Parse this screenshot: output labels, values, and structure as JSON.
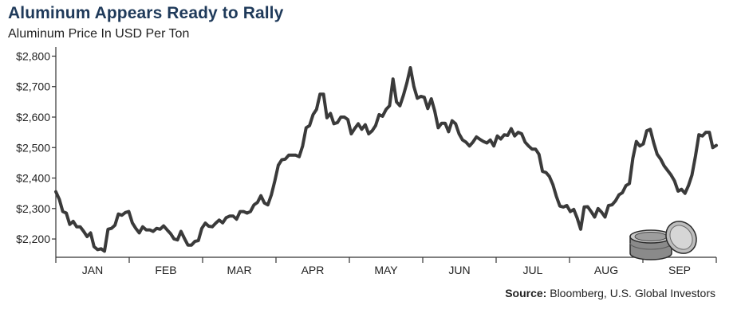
{
  "title": "Aluminum Appears Ready to Rally",
  "subtitle": "Aluminum Price In USD Per Ton",
  "source": {
    "label": "Source:",
    "text": " Bloomberg, U.S. Global Investors"
  },
  "colors": {
    "line": "#3a3a3a",
    "title": "#1f3a5a",
    "axis": "#333333"
  },
  "icon": "aluminum-tin-icon",
  "chart_data": {
    "type": "line",
    "title": "Aluminum Price In USD Per Ton",
    "xlabel": "",
    "ylabel": "",
    "ylim": [
      2140,
      2830
    ],
    "yticks": [
      2200,
      2300,
      2400,
      2500,
      2600,
      2700,
      2800
    ],
    "ytick_labels": [
      "$2,200",
      "$2,300",
      "$2,400",
      "$2,500",
      "$2,600",
      "$2,700",
      "$2,800"
    ],
    "months": [
      "JAN",
      "FEB",
      "MAR",
      "APR",
      "MAY",
      "JUN",
      "JUL",
      "AUG",
      "SEP"
    ],
    "grid": false,
    "series": [
      {
        "values": [
          2355,
          2330,
          2290,
          2285,
          2248,
          2258,
          2240,
          2240,
          2225,
          2208,
          2220,
          2175,
          2165,
          2168,
          2160,
          2232,
          2235,
          2245,
          2282,
          2278,
          2287,
          2290,
          2253,
          2235,
          2220,
          2240,
          2230,
          2230,
          2225,
          2235,
          2232,
          2243,
          2230,
          2218,
          2200,
          2197,
          2225,
          2202,
          2180,
          2180,
          2192,
          2195,
          2235,
          2252,
          2242,
          2240,
          2252,
          2262,
          2253,
          2270,
          2275,
          2275,
          2265,
          2290,
          2290,
          2285,
          2290,
          2312,
          2320,
          2342,
          2318,
          2312,
          2345,
          2390,
          2442,
          2460,
          2462,
          2475,
          2475,
          2475,
          2470,
          2505,
          2565,
          2572,
          2608,
          2625,
          2675,
          2675,
          2598,
          2612,
          2578,
          2582,
          2600,
          2600,
          2592,
          2545,
          2563,
          2578,
          2560,
          2575,
          2545,
          2555,
          2572,
          2608,
          2603,
          2625,
          2637,
          2725,
          2650,
          2637,
          2672,
          2712,
          2762,
          2700,
          2662,
          2668,
          2665,
          2628,
          2660,
          2620,
          2565,
          2580,
          2580,
          2552,
          2588,
          2578,
          2545,
          2525,
          2518,
          2505,
          2518,
          2535,
          2527,
          2520,
          2515,
          2525,
          2505,
          2538,
          2528,
          2542,
          2540,
          2562,
          2538,
          2550,
          2545,
          2518,
          2505,
          2495,
          2495,
          2478,
          2422,
          2418,
          2405,
          2378,
          2340,
          2308,
          2305,
          2310,
          2290,
          2297,
          2268,
          2232,
          2305,
          2306,
          2290,
          2272,
          2300,
          2288,
          2272,
          2310,
          2312,
          2325,
          2345,
          2352,
          2375,
          2382,
          2465,
          2520,
          2505,
          2512,
          2555,
          2560,
          2515,
          2478,
          2462,
          2440,
          2425,
          2410,
          2390,
          2357,
          2363,
          2350,
          2375,
          2410,
          2472,
          2542,
          2538,
          2550,
          2550,
          2500,
          2507
        ]
      }
    ]
  }
}
